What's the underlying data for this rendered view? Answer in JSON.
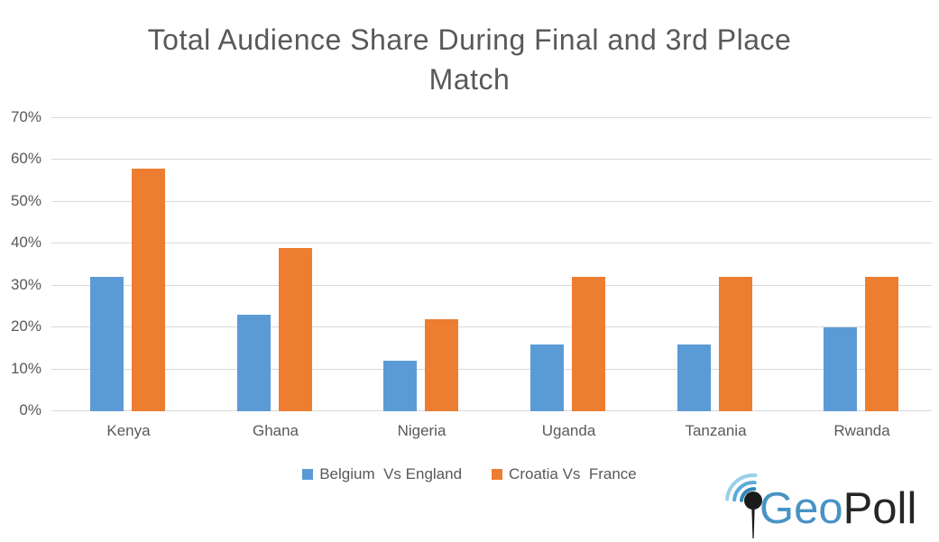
{
  "chart_data": {
    "type": "bar",
    "title": "Total Audience Share During Final and 3rd Place Match",
    "title_lines": [
      "Total Audience Share During Final and 3rd Place",
      "Match"
    ],
    "categories": [
      "Kenya",
      "Ghana",
      "Nigeria",
      "Uganda",
      "Tanzania",
      "Rwanda"
    ],
    "series": [
      {
        "name": "Belgium  Vs England",
        "color": "#5b9bd5",
        "values": [
          32,
          23,
          12,
          16,
          16,
          20
        ]
      },
      {
        "name": "Croatia Vs  France",
        "color": "#ed7d31",
        "values": [
          58,
          39,
          22,
          32,
          32,
          32
        ]
      }
    ],
    "ylabel": "",
    "xlabel": "",
    "ylim": [
      0,
      70
    ],
    "ytick_step": 10,
    "ytick_labels": [
      "0%",
      "10%",
      "20%",
      "30%",
      "40%",
      "50%",
      "60%",
      "70%"
    ],
    "grid": true,
    "legend_position": "bottom",
    "values_unit": "%"
  },
  "colors": {
    "text": "#595959",
    "gridline": "#d9d9d9",
    "series_blue": "#5b9bd5",
    "series_orange": "#ed7d31",
    "logo_blue": "#4793c4",
    "logo_dark": "#262626",
    "logo_wave_inner": "#2f88b8",
    "logo_wave_middle": "#5aabd6",
    "logo_wave_outer": "#9bcfe8",
    "logo_pin": "#1a1a1a"
  },
  "branding": {
    "logo_name": "GeoPoll",
    "logo_text_geo": "Geo",
    "logo_text_poll": "Poll"
  }
}
